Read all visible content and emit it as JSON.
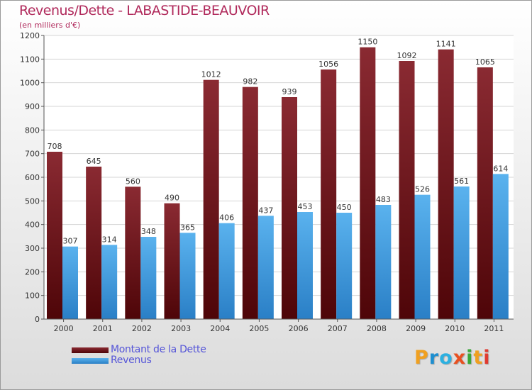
{
  "chart_data": {
    "type": "bar",
    "title": "Revenus/Dette - LABASTIDE-BEAUVOIR",
    "subtitle": "(en milliers d'€)",
    "categories": [
      "2000",
      "2001",
      "2002",
      "2003",
      "2004",
      "2005",
      "2006",
      "2007",
      "2008",
      "2009",
      "2010",
      "2011"
    ],
    "series": [
      {
        "name": "Montant de la Dette",
        "color": "#7a1a22",
        "values": [
          708,
          645,
          560,
          490,
          1012,
          982,
          939,
          1056,
          1150,
          1092,
          1141,
          1065
        ]
      },
      {
        "name": "Revenus",
        "color": "#3f9fe0",
        "values": [
          307,
          314,
          348,
          365,
          406,
          437,
          453,
          450,
          483,
          526,
          561,
          614
        ]
      }
    ],
    "ylim": [
      0,
      1200
    ],
    "yticks": [
      0,
      100,
      200,
      300,
      400,
      500,
      600,
      700,
      800,
      900,
      1000,
      1100,
      1200
    ],
    "grid": true,
    "legend_position": "bottom-left"
  },
  "logo": {
    "letters": [
      {
        "char": "P",
        "color": "#f0a020"
      },
      {
        "char": "r",
        "color": "#1e8fd0"
      },
      {
        "char": "o",
        "color": "#2cb0e0"
      },
      {
        "char": "x",
        "color": "#e85020"
      },
      {
        "char": "i",
        "color": "#3aa838"
      },
      {
        "char": "t",
        "color": "#f0a020"
      },
      {
        "char": "i",
        "color": "#e03a30"
      }
    ]
  }
}
